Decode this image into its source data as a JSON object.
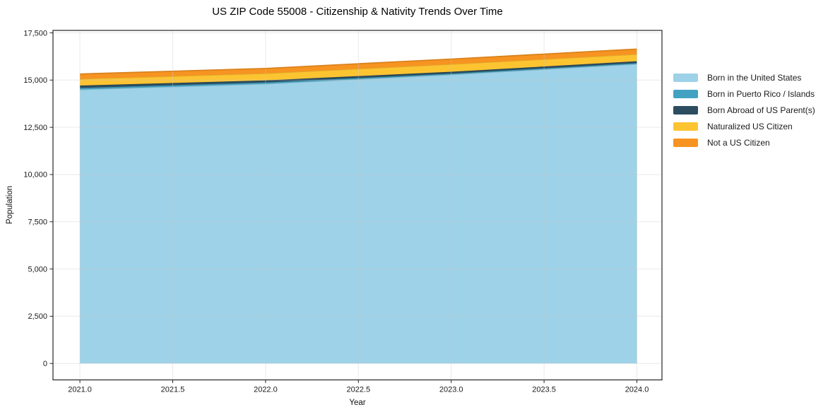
{
  "chart_data": {
    "type": "area",
    "stacked": true,
    "title": "US ZIP Code 55008 - Citizenship & Nativity Trends Over Time",
    "xlabel": "Year",
    "ylabel": "Population",
    "x": [
      2021,
      2022,
      2023,
      2024
    ],
    "series": [
      {
        "name": "Born in the United States",
        "color": "#9ed2e8",
        "values": [
          14500,
          14800,
          15290,
          15850
        ]
      },
      {
        "name": "Born in Puerto Rico / Islands",
        "color": "#43a2c2",
        "values": [
          85,
          75,
          55,
          50
        ]
      },
      {
        "name": "Born Abroad of US Parent(s)",
        "color": "#2c4d60",
        "values": [
          125,
          110,
          95,
          100
        ]
      },
      {
        "name": "Naturalized US Citizen",
        "color": "#fdc432",
        "values": [
          350,
          370,
          400,
          370
        ]
      },
      {
        "name": "Not a US Citizen",
        "color": "#f79421",
        "values": [
          260,
          260,
          270,
          270
        ]
      }
    ],
    "xlim": [
      2020.855,
      2024.135
    ],
    "ylim": [
      -870,
      17630
    ],
    "xticks": {
      "values": [
        2021.0,
        2021.5,
        2022.0,
        2022.5,
        2023.0,
        2023.5,
        2024.0
      ],
      "labels": [
        "2021.0",
        "2021.5",
        "2022.0",
        "2022.5",
        "2023.0",
        "2023.5",
        "2024.0"
      ]
    },
    "yticks": {
      "values": [
        0,
        2500,
        5000,
        7500,
        10000,
        12500,
        15000,
        17500
      ],
      "labels": [
        "0",
        "2,500",
        "5,000",
        "7,500",
        "10,000",
        "12,500",
        "15,000",
        "17,500"
      ]
    },
    "grid": true,
    "legend_position": "right-outside"
  },
  "colors": {
    "background": "#ffffff",
    "spine": "#262626",
    "grid": "#c9c9c9",
    "tick_text": "#1a1a1a"
  }
}
